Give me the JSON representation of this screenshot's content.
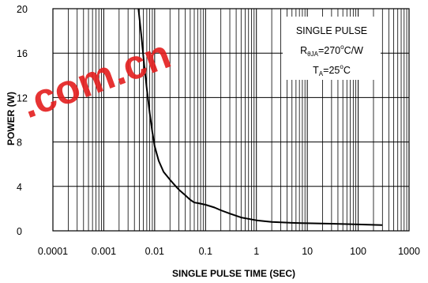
{
  "chart_data": {
    "type": "line",
    "title": "",
    "xlabel": "SINGLE PULSE TIME (SEC)",
    "ylabel": "POWER (W)",
    "xscale": "log",
    "xlim": [
      0.0001,
      1000
    ],
    "ylim": [
      0,
      20
    ],
    "grid": true,
    "x_ticks": [
      0.0001,
      0.001,
      0.01,
      0.1,
      1,
      10,
      100,
      1000
    ],
    "x_tick_labels": [
      "0.0001",
      "0.001",
      "0.01",
      "0.1",
      "1",
      "10",
      "100",
      "1000"
    ],
    "y_ticks": [
      0,
      4,
      8,
      12,
      16,
      20
    ],
    "y_tick_labels": [
      "0",
      "4",
      "8",
      "12",
      "16",
      "20"
    ],
    "series": [
      {
        "color": "#000000",
        "x": [
          0.0048,
          0.0055,
          0.0062,
          0.007,
          0.008,
          0.009,
          0.01,
          0.012,
          0.015,
          0.02,
          0.025,
          0.03,
          0.04,
          0.05,
          0.06,
          0.07,
          0.08,
          0.1,
          0.15,
          0.2,
          0.3,
          0.5,
          1,
          2,
          5,
          10,
          30,
          100,
          300
        ],
        "y": [
          20,
          17.5,
          15,
          12.8,
          10.6,
          8.9,
          7.6,
          6.3,
          5.3,
          4.6,
          4.1,
          3.7,
          3.2,
          2.8,
          2.55,
          2.5,
          2.45,
          2.35,
          2.1,
          1.85,
          1.55,
          1.2,
          0.95,
          0.8,
          0.72,
          0.68,
          0.64,
          0.58,
          0.52
        ]
      }
    ],
    "annotation": {
      "line1": "SINGLE PULSE",
      "line2_symbol": "R",
      "line2_sub": "θJA",
      "line2_value": "=270",
      "line2_sup": "o",
      "line2_unit": "C/W",
      "line3_symbol": "T",
      "line3_sub": "A",
      "line3_value": "=25",
      "line3_sup": "o",
      "line3_unit": "C"
    }
  },
  "watermark": {
    "text": ".com.cn",
    "color": "#e41e1e"
  }
}
